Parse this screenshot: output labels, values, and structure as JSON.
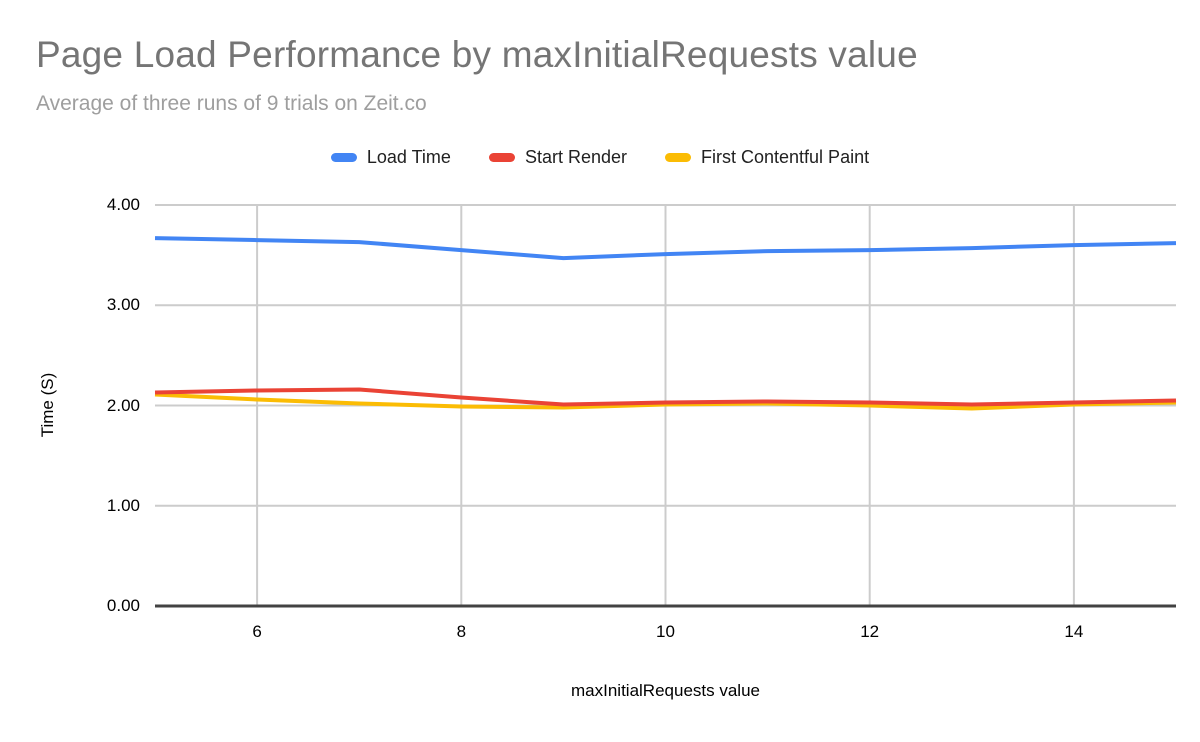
{
  "chart_data": {
    "type": "line",
    "title": "Page Load Performance by maxInitialRequests value",
    "subtitle": "Average of three runs of 9 trials on Zeit.co",
    "xlabel": "maxInitialRequests value",
    "ylabel": "Time (S)",
    "x": [
      5,
      6,
      7,
      8,
      9,
      10,
      11,
      12,
      13,
      14,
      15
    ],
    "series": [
      {
        "name": "Load Time",
        "color": "#4285f4",
        "values": [
          3.67,
          3.65,
          3.63,
          3.55,
          3.47,
          3.51,
          3.54,
          3.55,
          3.57,
          3.6,
          3.62
        ]
      },
      {
        "name": "Start Render",
        "color": "#ea4335",
        "values": [
          2.13,
          2.15,
          2.16,
          2.08,
          2.01,
          2.03,
          2.04,
          2.03,
          2.01,
          2.03,
          2.05
        ]
      },
      {
        "name": "First Contentful Paint",
        "color": "#fbbc04",
        "values": [
          2.11,
          2.06,
          2.02,
          1.99,
          1.98,
          2.01,
          2.02,
          2.0,
          1.97,
          2.01,
          2.03
        ]
      }
    ],
    "z_order": [
      0,
      2,
      1
    ],
    "xlim": [
      5,
      15
    ],
    "ylim": [
      0,
      4
    ],
    "x_ticks": {
      "values": [
        6,
        8,
        10,
        12,
        14
      ],
      "labels": [
        "6",
        "8",
        "10",
        "12",
        "14"
      ]
    },
    "y_ticks": {
      "values": [
        0,
        1,
        2,
        3,
        4
      ],
      "labels": [
        "0.00",
        "1.00",
        "2.00",
        "3.00",
        "4.00"
      ]
    },
    "grid": true,
    "legend_position": "top"
  },
  "colors": {
    "background": "#ffffff",
    "title_text": "#757575",
    "subtitle_text": "#9e9e9e",
    "legend_text": "#212121",
    "axis_text": "#000000",
    "gridline": "#cccccc",
    "baseline": "#424242"
  }
}
